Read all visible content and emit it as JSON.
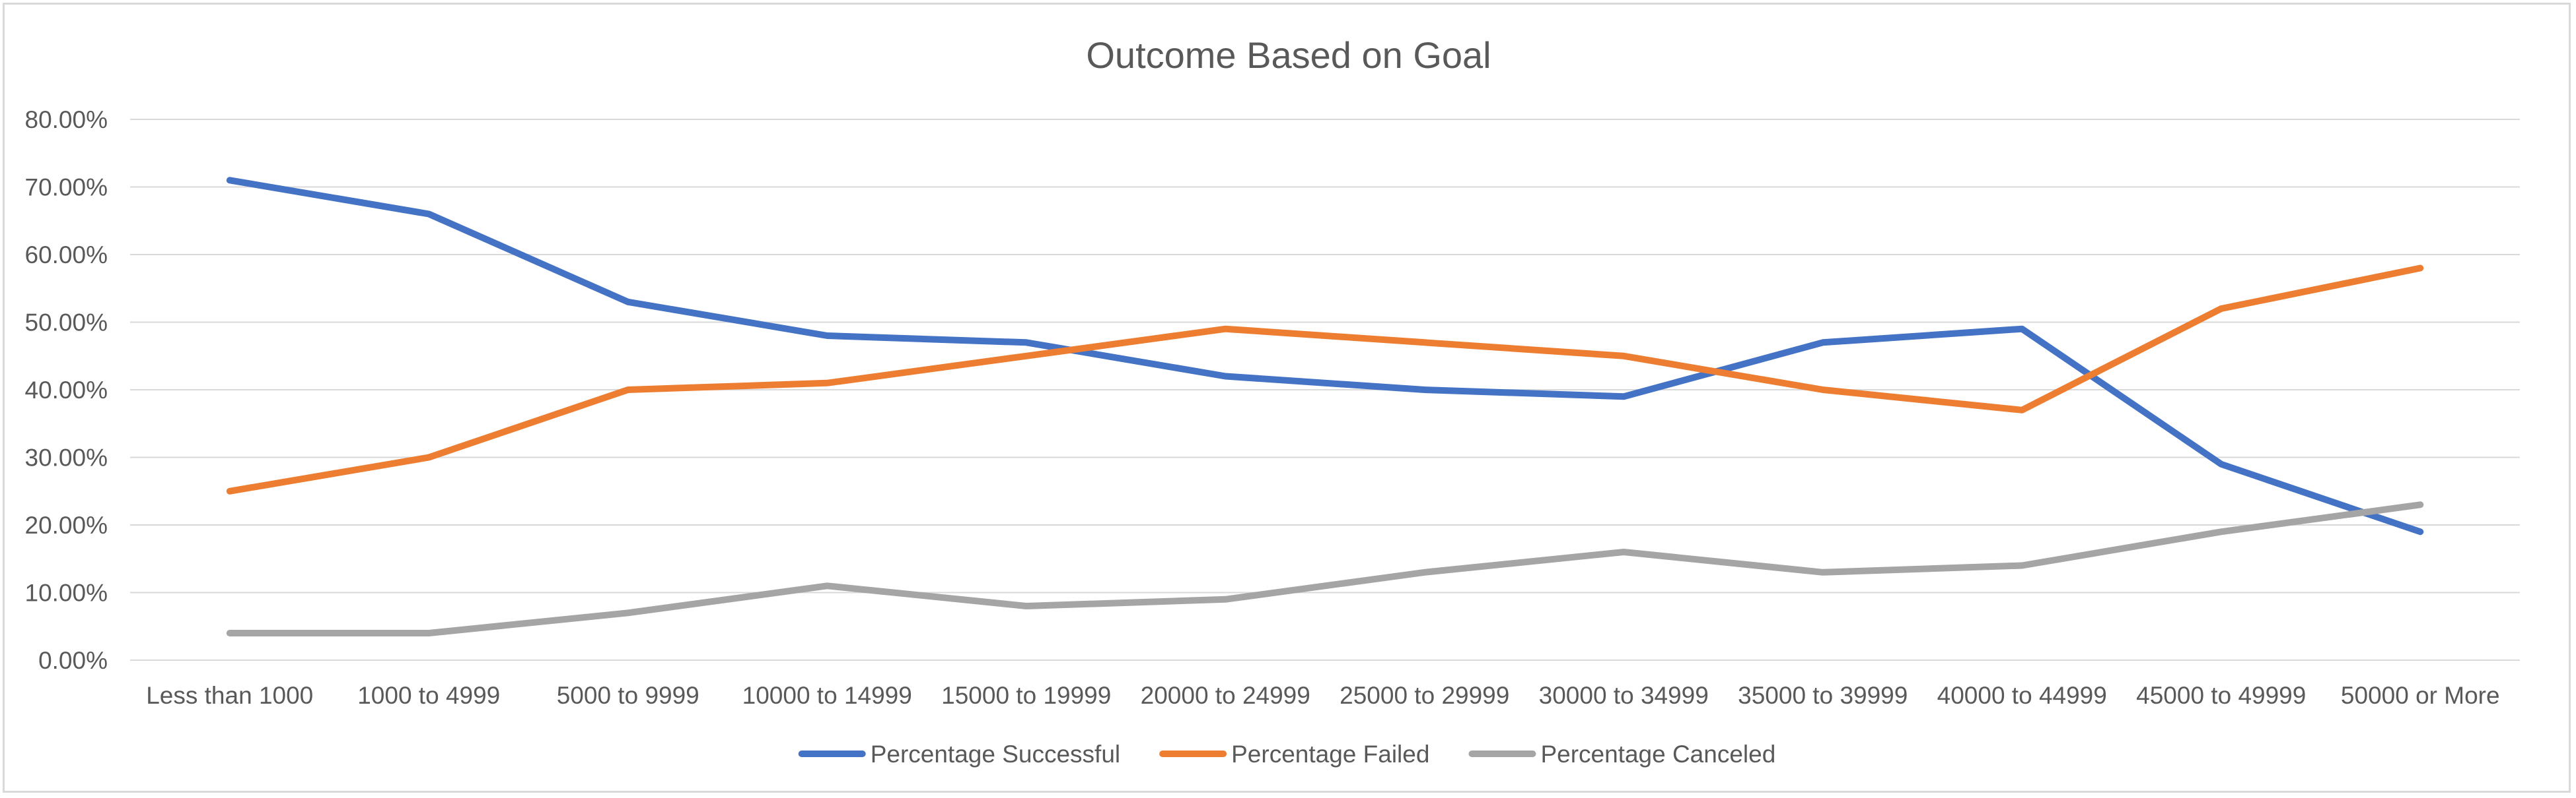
{
  "chart_data": {
    "type": "line",
    "title": "Outcome Based on Goal",
    "xlabel": "",
    "ylabel": "",
    "categories": [
      "Less than 1000",
      "1000 to 4999",
      "5000 to 9999",
      "10000 to 14999",
      "15000 to 19999",
      "20000 to 24999",
      "25000 to 29999",
      "30000 to 34999",
      "35000 to 39999",
      "40000 to 44999",
      "45000 to 49999",
      "50000 or More"
    ],
    "ylim": [
      0,
      80
    ],
    "yticks": [
      "0.00%",
      "10.00%",
      "20.00%",
      "30.00%",
      "40.00%",
      "50.00%",
      "60.00%",
      "70.00%",
      "80.00%"
    ],
    "grid": true,
    "legend_position": "bottom",
    "series": [
      {
        "name": "Percentage Successful",
        "color": "#4472c4",
        "values": [
          71,
          66,
          53,
          48,
          47,
          42,
          40,
          39,
          47,
          49,
          29,
          19
        ]
      },
      {
        "name": "Percentage Failed",
        "color": "#ed7d31",
        "values": [
          25,
          30,
          40,
          41,
          45,
          49,
          47,
          45,
          40,
          37,
          52,
          58
        ]
      },
      {
        "name": "Percentage Canceled",
        "color": "#a5a5a5",
        "values": [
          4,
          4,
          7,
          11,
          8,
          9,
          13,
          16,
          13,
          14,
          19,
          23
        ]
      }
    ]
  }
}
